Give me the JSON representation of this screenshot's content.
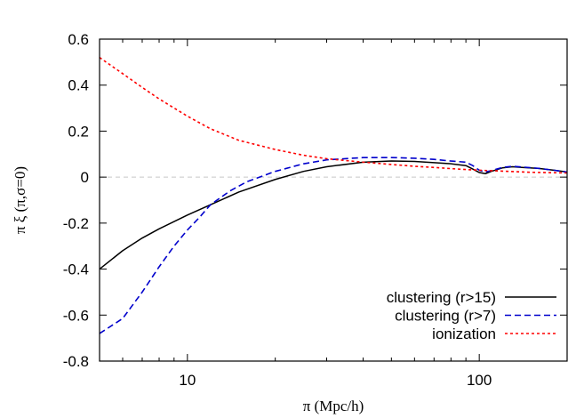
{
  "chart_data": {
    "type": "line",
    "xlabel": "π (Mpc/h)",
    "ylabel": "π ξ (π,σ=0)",
    "x_scale": "log",
    "xlim": [
      5,
      200
    ],
    "ylim": [
      -0.8,
      0.6
    ],
    "x_ticks": [
      10,
      100
    ],
    "x_tick_labels": [
      "10",
      "100"
    ],
    "y_ticks": [
      -0.8,
      -0.6,
      -0.4,
      -0.2,
      0,
      0.2,
      0.4,
      0.6
    ],
    "y_tick_labels": [
      "-0.8",
      "-0.6",
      "-0.4",
      "-0.2",
      "0",
      "0.2",
      "0.4",
      "0.6"
    ],
    "grid": false,
    "zero_line": {
      "y": 0,
      "color": "#c8c8c8",
      "style": "dashed"
    },
    "legend_position": "bottom-right",
    "series": [
      {
        "name": "clustering (r>15)",
        "color": "#000000",
        "style": "solid",
        "x": [
          5,
          6,
          7,
          8,
          10,
          12,
          15,
          20,
          25,
          30,
          40,
          50,
          60,
          70,
          80,
          90,
          95,
          100,
          105,
          110,
          120,
          130,
          140,
          160,
          180,
          200
        ],
        "y": [
          -0.4,
          -0.32,
          -0.265,
          -0.225,
          -0.165,
          -0.12,
          -0.065,
          -0.01,
          0.025,
          0.045,
          0.065,
          0.07,
          0.068,
          0.063,
          0.058,
          0.05,
          0.035,
          0.02,
          0.015,
          0.025,
          0.04,
          0.045,
          0.042,
          0.038,
          0.03,
          0.022
        ]
      },
      {
        "name": "clustering (r>7)",
        "color": "#0000cc",
        "style": "dashed",
        "x": [
          5,
          6,
          7,
          8,
          9,
          10,
          11,
          12,
          14,
          16,
          20,
          25,
          30,
          40,
          50,
          60,
          70,
          80,
          90,
          95,
          100,
          105,
          110,
          120,
          130,
          140,
          160,
          180,
          200
        ],
        "y": [
          -0.68,
          -0.615,
          -0.5,
          -0.39,
          -0.3,
          -0.23,
          -0.175,
          -0.12,
          -0.06,
          -0.02,
          0.025,
          0.058,
          0.075,
          0.085,
          0.085,
          0.082,
          0.077,
          0.07,
          0.065,
          0.05,
          0.03,
          0.022,
          0.028,
          0.042,
          0.047,
          0.044,
          0.038,
          0.03,
          0.022
        ]
      },
      {
        "name": "ionization",
        "color": "#ff0000",
        "style": "dotted",
        "x": [
          5,
          6,
          7,
          8,
          10,
          12,
          15,
          20,
          25,
          30,
          40,
          50,
          60,
          70,
          80,
          90,
          100,
          120,
          150,
          200
        ],
        "y": [
          0.52,
          0.45,
          0.39,
          0.34,
          0.265,
          0.21,
          0.16,
          0.12,
          0.095,
          0.08,
          0.065,
          0.055,
          0.047,
          0.042,
          0.037,
          0.033,
          0.03,
          0.026,
          0.021,
          0.018
        ]
      }
    ]
  }
}
